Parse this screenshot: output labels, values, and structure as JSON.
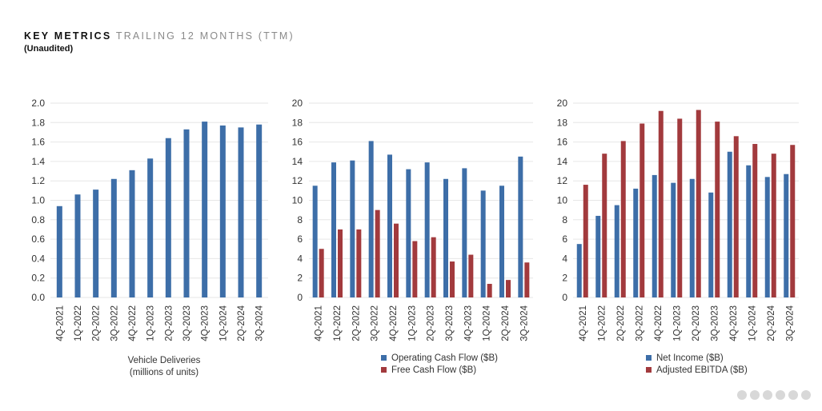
{
  "header": {
    "title_strong": "KEY METRICS",
    "title_light": "TRAILING 12 MONTHS (TTM)",
    "subtitle": "(Unaudited)"
  },
  "colors": {
    "blue": "#3d6ea8",
    "red": "#a23a3d",
    "grid": "#e6e6e6",
    "text": "#333333"
  },
  "chart_data": [
    {
      "type": "bar",
      "categories": [
        "4Q-2021",
        "1Q-2022",
        "2Q-2022",
        "3Q-2022",
        "4Q-2022",
        "1Q-2023",
        "2Q-2023",
        "3Q-2023",
        "4Q-2023",
        "1Q-2024",
        "2Q-2024",
        "3Q-2024"
      ],
      "series": [
        {
          "name": "",
          "color": "#3d6ea8",
          "values": [
            0.94,
            1.06,
            1.11,
            1.22,
            1.31,
            1.43,
            1.64,
            1.73,
            1.81,
            1.77,
            1.75,
            1.78
          ]
        }
      ],
      "ylim": [
        0,
        2.0
      ],
      "yticks": [
        "0.0",
        "0.2",
        "0.4",
        "0.6",
        "0.8",
        "1.0",
        "1.2",
        "1.4",
        "1.6",
        "1.8",
        "2.0"
      ],
      "xlabel": [
        "Vehicle Deliveries",
        "(millions of units)"
      ],
      "legend": []
    },
    {
      "type": "bar",
      "categories": [
        "4Q-2021",
        "1Q-2022",
        "2Q-2022",
        "3Q-2022",
        "4Q-2022",
        "1Q-2023",
        "2Q-2023",
        "3Q-2023",
        "4Q-2023",
        "1Q-2024",
        "2Q-2024",
        "3Q-2024"
      ],
      "series": [
        {
          "name": "Operating Cash Flow ($B)",
          "color": "#3d6ea8",
          "values": [
            11.5,
            13.9,
            14.1,
            16.1,
            14.7,
            13.2,
            13.9,
            12.2,
            13.3,
            11.0,
            11.5,
            14.5
          ]
        },
        {
          "name": "Free Cash Flow ($B)",
          "color": "#a23a3d",
          "values": [
            5.0,
            7.0,
            7.0,
            9.0,
            7.6,
            5.8,
            6.2,
            3.7,
            4.4,
            1.4,
            1.8,
            3.6
          ]
        }
      ],
      "ylim": [
        0,
        20
      ],
      "yticks": [
        "0",
        "2",
        "4",
        "6",
        "8",
        "10",
        "12",
        "14",
        "16",
        "18",
        "20"
      ],
      "xlabel": [],
      "legend": [
        "Operating Cash Flow ($B)",
        "Free Cash Flow ($B)"
      ]
    },
    {
      "type": "bar",
      "categories": [
        "4Q-2021",
        "1Q-2022",
        "2Q-2022",
        "3Q-2022",
        "4Q-2022",
        "1Q-2023",
        "2Q-2023",
        "3Q-2023",
        "4Q-2023",
        "1Q-2024",
        "2Q-2024",
        "3Q-2024"
      ],
      "series": [
        {
          "name": "Net Income ($B)",
          "color": "#3d6ea8",
          "values": [
            5.5,
            8.4,
            9.5,
            11.2,
            12.6,
            11.8,
            12.2,
            10.8,
            15.0,
            13.6,
            12.4,
            12.7
          ]
        },
        {
          "name": "Adjusted EBITDA ($B)",
          "color": "#a23a3d",
          "values": [
            11.6,
            14.8,
            16.1,
            17.9,
            19.2,
            18.4,
            19.3,
            18.1,
            16.6,
            15.8,
            14.8,
            15.7
          ]
        }
      ],
      "ylim": [
        0,
        20
      ],
      "yticks": [
        "0",
        "2",
        "4",
        "6",
        "8",
        "10",
        "12",
        "14",
        "16",
        "18",
        "20"
      ],
      "xlabel": [],
      "legend": [
        "Net Income ($B)",
        "Adjusted EBITDA ($B)"
      ]
    }
  ]
}
